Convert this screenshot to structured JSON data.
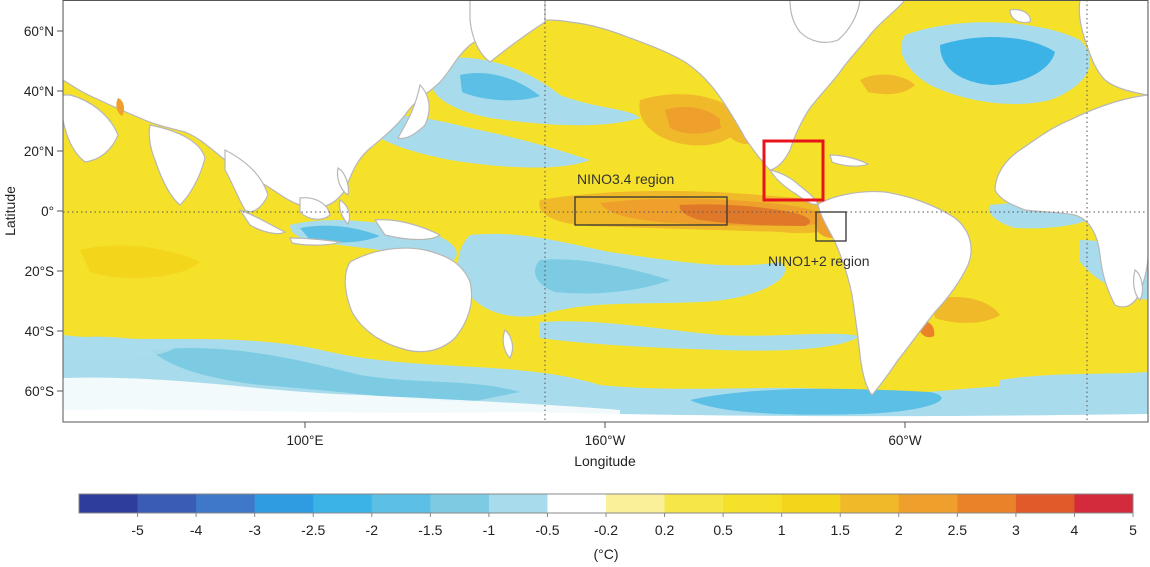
{
  "map": {
    "region_labels": {
      "nino34": "NINO3.4 region",
      "nino12": "NINO1+2 region"
    },
    "axes": {
      "ylabel": "Latitude",
      "xlabel": "Longitude",
      "y_ticks": [
        "60°N",
        "40°N",
        "20°N",
        "0°",
        "20°S",
        "40°S",
        "60°S"
      ],
      "x_ticks": [
        "100°E",
        "160°W",
        "60°W"
      ]
    }
  },
  "colorbar": {
    "unit": "(°C)",
    "tick_labels": [
      "-5",
      "-4",
      "-3",
      "-2.5",
      "-2",
      "-1.5",
      "-1",
      "-0.5",
      "-0.2",
      "0.2",
      "0.5",
      "1",
      "1.5",
      "2",
      "2.5",
      "3",
      "4",
      "5"
    ],
    "colors": [
      "#2e3d99",
      "#3a5cb3",
      "#3f78c6",
      "#2f9be0",
      "#3cb3e6",
      "#5cc0e6",
      "#7ccbe3",
      "#a8dcec",
      "#ffffff",
      "#fbf09a",
      "#f7e648",
      "#f6e12a",
      "#f3d51c",
      "#f0b929",
      "#ee9f2c",
      "#e98228",
      "#e05a2a",
      "#d32a3c"
    ]
  },
  "colors": {
    "ocean_warm": "#f6e12a",
    "ocean_cool": "#a8dcec",
    "anomaly_hot": "#e0782a",
    "land": "#ffffff",
    "coast": "#b7b7b7",
    "highlight_box": "#e8141b",
    "region_box": "#333333"
  }
}
